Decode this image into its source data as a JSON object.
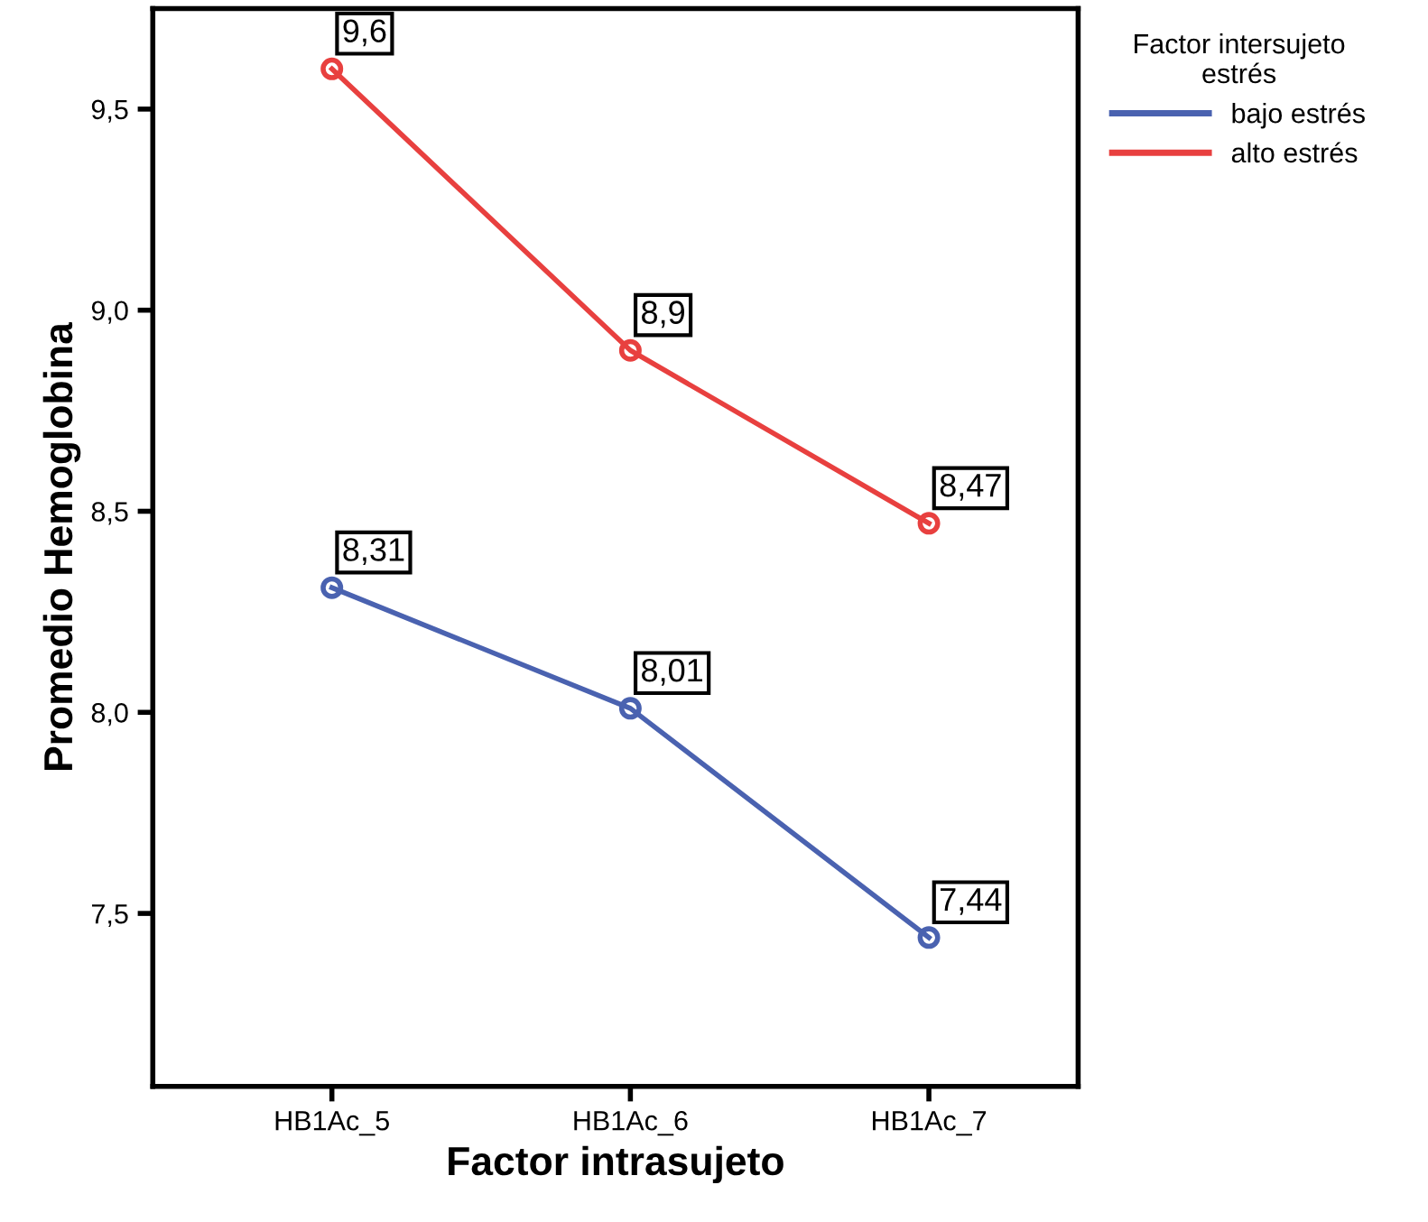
{
  "chart_data": {
    "type": "line",
    "xlabel": "Factor intrasujeto",
    "ylabel": "Promedio Hemoglobina",
    "legend_title": "Factor intersujeto\nestrés",
    "categories": [
      "HB1Ac_5",
      "HB1Ac_6",
      "HB1Ac_7"
    ],
    "series": [
      {
        "name": "bajo estrés",
        "color": "#4a62b0",
        "values": [
          8.31,
          8.01,
          7.44
        ],
        "value_labels": [
          "8,31",
          "8,01",
          "7,44"
        ]
      },
      {
        "name": "alto estrés",
        "color": "#e8403f",
        "values": [
          9.6,
          8.9,
          8.47
        ],
        "value_labels": [
          "9,6",
          "8,9",
          "8,47"
        ]
      }
    ],
    "ylim": [
      7.07,
      9.75
    ],
    "yticks": [
      {
        "value": 7.5,
        "label": "7,5"
      },
      {
        "value": 8.0,
        "label": "8,0"
      },
      {
        "value": 8.5,
        "label": "8,5"
      },
      {
        "value": 9.0,
        "label": "9,0"
      },
      {
        "value": 9.5,
        "label": "9,5"
      }
    ],
    "legend": "right",
    "marker": "circle",
    "line_style": "solid",
    "grid": false
  }
}
